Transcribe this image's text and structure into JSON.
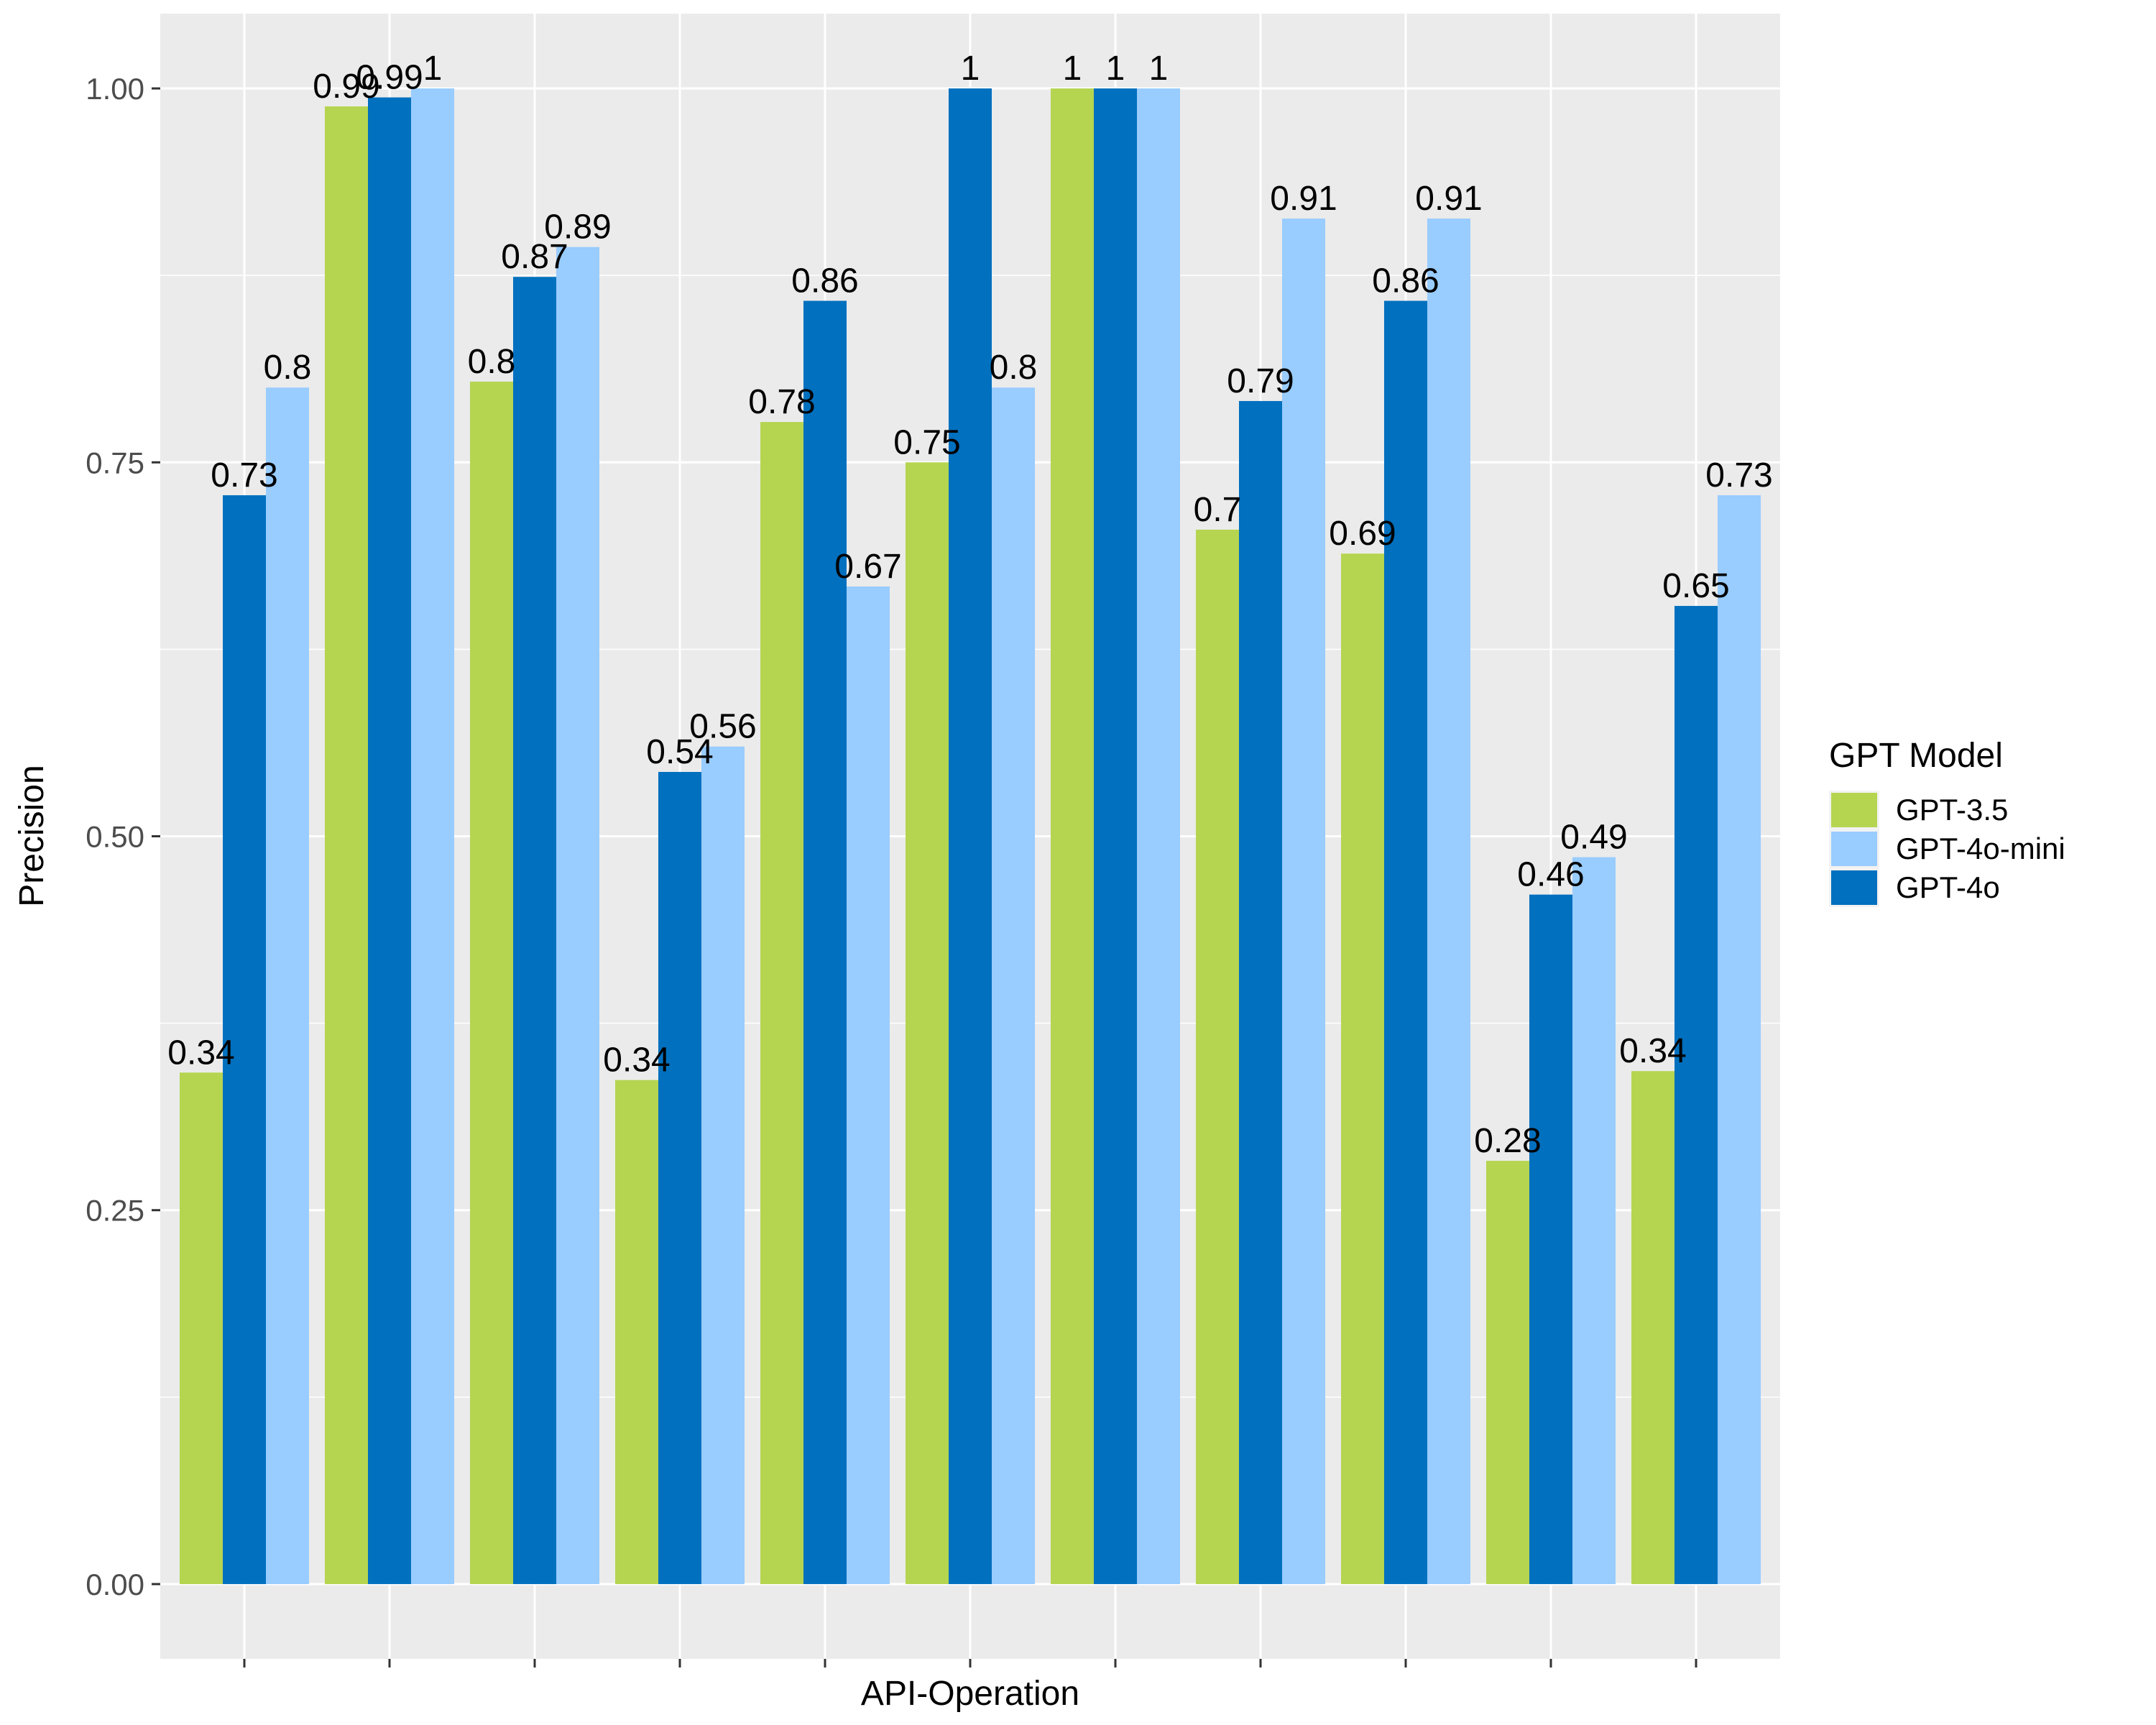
{
  "chart_data": {
    "type": "bar",
    "xlabel": "API-Operation",
    "ylabel": "Precision",
    "ylim": [
      -0.05,
      1.05
    ],
    "yticks": [
      0.0,
      0.25,
      0.5,
      0.75,
      1.0
    ],
    "ytick_labels": [
      "0.00",
      "0.25",
      "0.50",
      "0.75",
      "1.00"
    ],
    "grid": true,
    "legend_position": "right",
    "legend_title": "GPT Model",
    "legend_order": [
      "GPT-3.5",
      "GPT-4o-mini",
      "GPT-4o"
    ],
    "categories": [
      "",
      "",
      "",
      "",
      "",
      "",
      "",
      "",
      "",
      "",
      ""
    ],
    "series": [
      {
        "name": "GPT-3.5",
        "color": "#b5d551",
        "values": [
          0.34,
          0.99,
          0.8,
          0.34,
          0.78,
          0.75,
          1,
          0.7,
          0.69,
          0.28,
          0.34
        ],
        "heights": [
          0.342,
          0.988,
          0.804,
          0.337,
          0.777,
          0.75,
          1.0,
          0.705,
          0.689,
          0.283,
          0.343
        ]
      },
      {
        "name": "GPT-4o",
        "color": "#0070bf",
        "values": [
          0.73,
          0.99,
          0.87,
          0.54,
          0.86,
          1,
          1,
          0.79,
          0.86,
          0.46,
          0.65
        ],
        "heights": [
          0.728,
          0.994,
          0.874,
          0.543,
          0.858,
          1.0,
          1.0,
          0.791,
          0.858,
          0.461,
          0.654
        ]
      },
      {
        "name": "GPT-4o-mini",
        "color": "#99ccff",
        "values": [
          0.8,
          1,
          0.89,
          0.56,
          0.67,
          0.8,
          1,
          0.91,
          0.91,
          0.49,
          0.73
        ],
        "heights": [
          0.8,
          1.0,
          0.894,
          0.56,
          0.667,
          0.8,
          1.0,
          0.913,
          0.913,
          0.486,
          0.728
        ]
      }
    ]
  }
}
